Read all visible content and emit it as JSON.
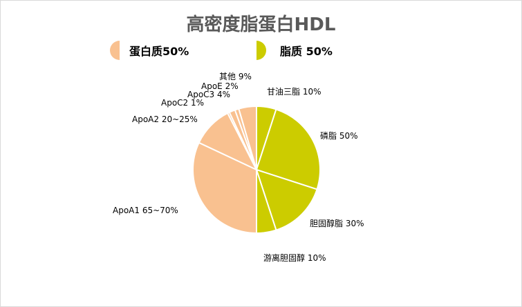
{
  "chart_data": {
    "type": "pie",
    "title": "高密度脂蛋白HDL",
    "legend": [
      {
        "label": "蛋白质50%",
        "color": "#F9C190"
      },
      {
        "label": "脂质 50%",
        "color": "#CCCC00"
      }
    ],
    "slices": [
      {
        "label": "甘油三脂 10%",
        "value": 5,
        "group": "脂质",
        "color": "#CCCC00"
      },
      {
        "label": "磷脂 50%",
        "value": 25,
        "group": "脂质",
        "color": "#CCCC00"
      },
      {
        "label": "胆固醇脂 30%",
        "value": 15,
        "group": "脂质",
        "color": "#CCCC00"
      },
      {
        "label": "游离胆固醇 10%",
        "value": 5,
        "group": "脂质",
        "color": "#CCCC00"
      },
      {
        "label": "ApoA1 65~70%",
        "value": 32,
        "group": "蛋白质",
        "color": "#F9C190"
      },
      {
        "label": "ApoA2 20~25%",
        "value": 10.5,
        "group": "蛋白质",
        "color": "#F9C190"
      },
      {
        "label": "ApoC2 1%",
        "value": 0.5,
        "group": "蛋白质",
        "color": "#F9C190"
      },
      {
        "label": "ApoC3 4%",
        "value": 1.5,
        "group": "蛋白质",
        "color": "#F9C190"
      },
      {
        "label": "ApoE 2%",
        "value": 1,
        "group": "蛋白质",
        "color": "#F9C190"
      },
      {
        "label": "其他 9%",
        "value": 4.5,
        "group": "蛋白质",
        "color": "#F9C190"
      }
    ]
  }
}
